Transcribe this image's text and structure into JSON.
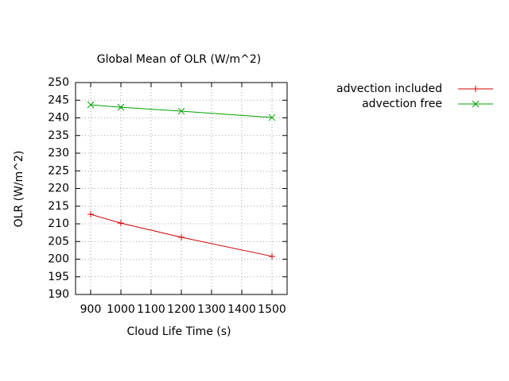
{
  "chart_data": {
    "type": "line",
    "title": "Global Mean of OLR (W/m^2)",
    "x_label": "Cloud Life Time (s)",
    "y_label": "OLR (W/m^2)",
    "x": [
      900,
      1000,
      1200,
      1500
    ],
    "series": [
      {
        "name": "advection included",
        "color": "#cc0000",
        "marker": "plus",
        "values": [
          212.7,
          210.2,
          206.2,
          200.8
        ]
      },
      {
        "name": "advection free",
        "color": "#00a000",
        "marker": "cross",
        "values": [
          243.7,
          243.0,
          241.9,
          240.1
        ]
      }
    ],
    "xlim": [
      850,
      1550
    ],
    "xticks": [
      900,
      1000,
      1100,
      1200,
      1300,
      1400,
      1500
    ],
    "ylim": [
      190,
      250
    ],
    "yticks": [
      190,
      195,
      200,
      205,
      210,
      215,
      220,
      225,
      230,
      235,
      240,
      245,
      250
    ],
    "grid": true,
    "legend": "outside-right"
  }
}
